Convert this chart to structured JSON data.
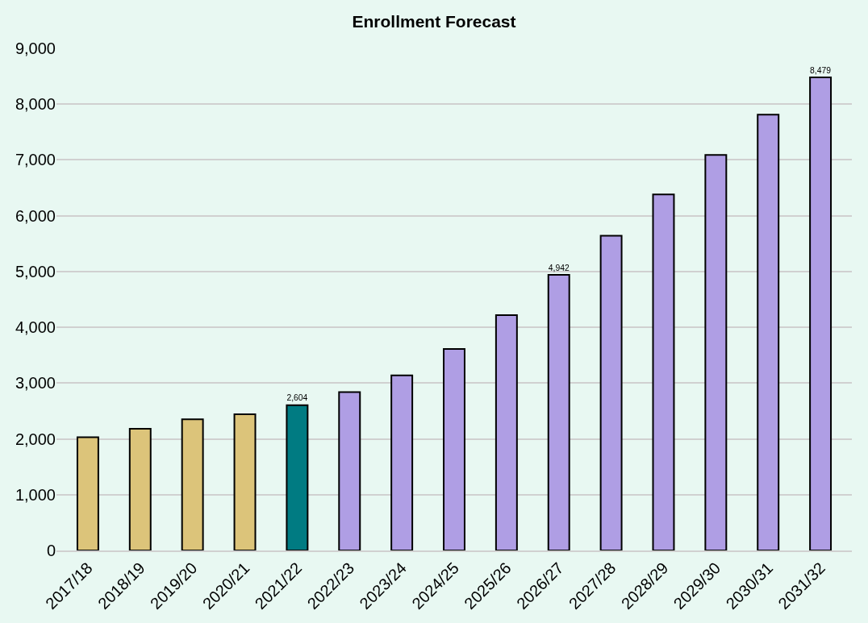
{
  "chart_data": {
    "type": "bar",
    "title": "Enrollment Forecast",
    "categories": [
      "2017/18",
      "2018/19",
      "2019/20",
      "2020/21",
      "2021/22",
      "2022/23",
      "2023/24",
      "2024/25",
      "2025/26",
      "2026/27",
      "2027/28",
      "2028/29",
      "2029/30",
      "2030/31",
      "2031/32"
    ],
    "values": [
      2030,
      2180,
      2350,
      2440,
      2604,
      2840,
      3140,
      3610,
      4220,
      4942,
      5640,
      6380,
      7090,
      7810,
      8479
    ],
    "colors": [
      "#dcc47a",
      "#dcc47a",
      "#dcc47a",
      "#dcc47a",
      "#007b82",
      "#af9ee4",
      "#af9ee4",
      "#af9ee4",
      "#af9ee4",
      "#af9ee4",
      "#af9ee4",
      "#af9ee4",
      "#af9ee4",
      "#af9ee4",
      "#af9ee4"
    ],
    "value_labels": [
      null,
      null,
      null,
      null,
      "2,604",
      null,
      null,
      null,
      null,
      "4,942",
      null,
      null,
      null,
      null,
      "8,479"
    ],
    "ylim": [
      0,
      9000
    ],
    "yticks": [
      0,
      {
        "value": 1000,
        "label": "1,000"
      },
      {
        "value": 2000,
        "label": "2,000"
      },
      {
        "value": 3000,
        "label": "3,000"
      },
      {
        "value": 4000,
        "label": "4,000"
      },
      {
        "value": 5000,
        "label": "5,000"
      },
      {
        "value": 6000,
        "label": "6,000"
      },
      {
        "value": 7000,
        "label": "7,000"
      },
      {
        "value": 8000,
        "label": "8,000"
      },
      {
        "value": 9000,
        "label": "9,000"
      }
    ],
    "grid": "y"
  }
}
